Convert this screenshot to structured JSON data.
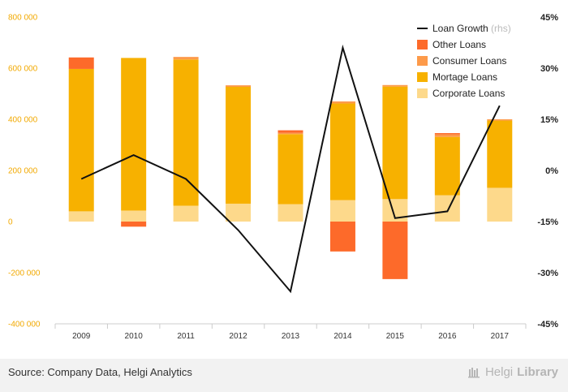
{
  "chart_data": {
    "type": "bar",
    "stacked": true,
    "categories": [
      "2009",
      "2010",
      "2011",
      "2012",
      "2013",
      "2014",
      "2015",
      "2016",
      "2017"
    ],
    "series": [
      {
        "name": "Corporate Loans",
        "color": "#fdd98b",
        "values": [
          40000,
          43000,
          62000,
          70000,
          68000,
          84000,
          88000,
          103000,
          132000
        ]
      },
      {
        "name": "Mortage Loans",
        "color": "#f7b100",
        "values": [
          557000,
          597000,
          572000,
          457000,
          274000,
          378000,
          440000,
          228000,
          263000
        ]
      },
      {
        "name": "Consumer Loans",
        "color": "#fd9a4a",
        "values": [
          0,
          0,
          10000,
          6000,
          5000,
          8000,
          6000,
          10000,
          5000
        ]
      },
      {
        "name": "Other Loans",
        "color": "#fd6a2a",
        "values": [
          45000,
          -20000,
          0,
          0,
          10000,
          -117000,
          -225000,
          5000,
          0
        ]
      }
    ],
    "line": {
      "name": "Loan Growth",
      "suffix": "(rhs)",
      "color": "#111111",
      "values": [
        -2.5,
        4.5,
        -2.5,
        -17.5,
        -35.5,
        36.0,
        -14.0,
        -12.0,
        19.0
      ]
    },
    "left_axis": {
      "ylim": [
        -400000,
        800000
      ],
      "ticks": [
        "800 000",
        "600 000",
        "400 000",
        "200 000",
        "0",
        "-200 000",
        "-400 000"
      ]
    },
    "right_axis": {
      "ylim": [
        -45,
        45
      ],
      "ticks": [
        "45%",
        "30%",
        "15%",
        "0%",
        "-15%",
        "-30%",
        "-45%"
      ]
    },
    "legend_order": [
      "Loan Growth",
      "Other Loans",
      "Consumer Loans",
      "Mortage Loans",
      "Corporate Loans"
    ],
    "legend_position": "top-right",
    "grid": false
  },
  "footer": {
    "source": "Source: Company Data, Helgi Analytics",
    "brand_light": "Helgi",
    "brand_bold": "Library"
  }
}
